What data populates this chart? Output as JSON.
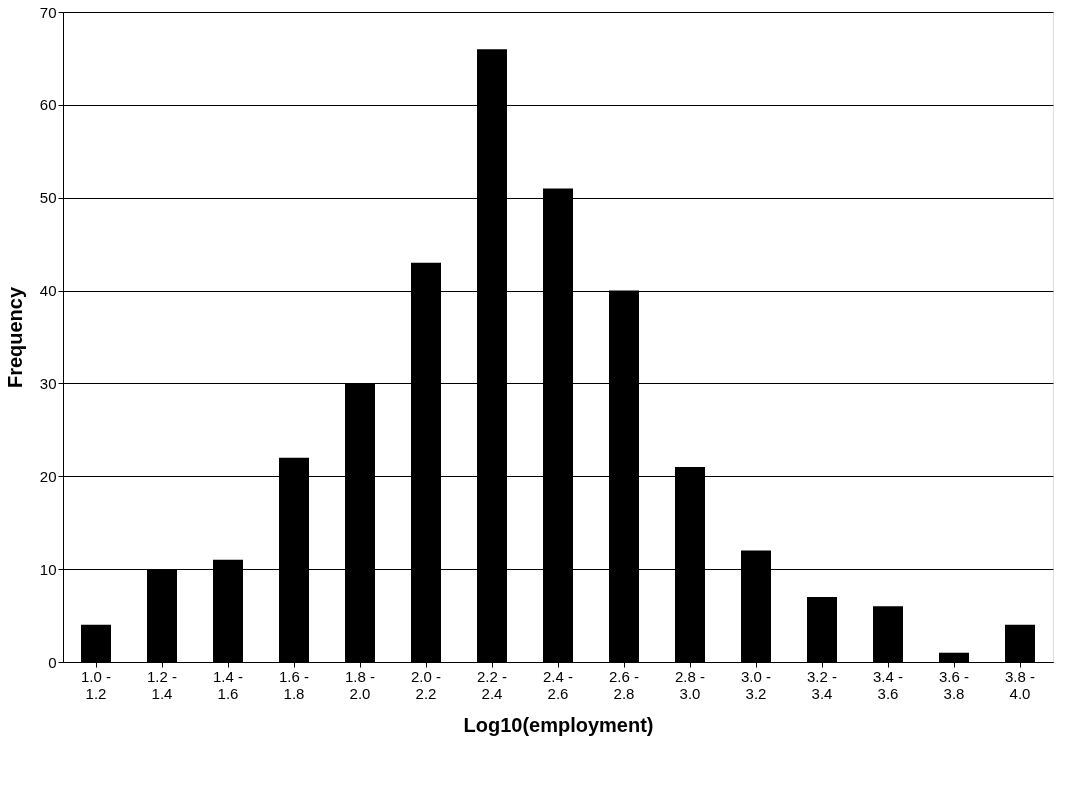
{
  "chart_data": {
    "type": "bar",
    "xlabel": "Log10(employment)",
    "ylabel": "Frequency",
    "categories": [
      "1.0 - 1.2",
      "1.2 - 1.4",
      "1.4 - 1.6",
      "1.6 - 1.8",
      "1.8 - 2.0",
      "2.0 - 2.2",
      "2.2 - 2.4",
      "2.4 - 2.6",
      "2.6 - 2.8",
      "2.8 - 3.0",
      "3.0 - 3.2",
      "3.2 - 3.4",
      "3.4 - 3.6",
      "3.6 - 3.8",
      "3.8 - 4.0"
    ],
    "values": [
      4,
      10,
      11,
      22,
      30,
      43,
      66,
      51,
      40,
      21,
      12,
      7,
      6,
      1,
      4
    ],
    "color": "#000000",
    "ylim": [
      0,
      70
    ],
    "yticks": [
      0,
      10,
      20,
      30,
      40,
      50,
      60,
      70
    ],
    "grid": "y"
  }
}
